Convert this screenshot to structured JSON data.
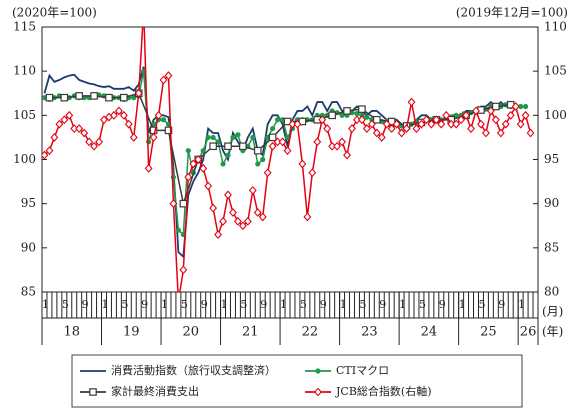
{
  "chart_data": {
    "type": "line",
    "ylabel": "(2020年=100)",
    "y2label": "(2019年12月=100)",
    "xlabel": "(月)",
    "x2label": "(年)",
    "ylim": [
      85,
      115
    ],
    "yticks": [
      85,
      90,
      95,
      100,
      105,
      110,
      115
    ],
    "y2lim": [
      80,
      110
    ],
    "y2ticks": [
      80,
      85,
      90,
      95,
      100,
      105,
      110
    ],
    "x": [
      "2018-01",
      "2018-02",
      "2018-03",
      "2018-04",
      "2018-05",
      "2018-06",
      "2018-07",
      "2018-08",
      "2018-09",
      "2018-10",
      "2018-11",
      "2018-12",
      "2019-01",
      "2019-02",
      "2019-03",
      "2019-04",
      "2019-05",
      "2019-06",
      "2019-07",
      "2019-08",
      "2019-09",
      "2019-10",
      "2019-11",
      "2019-12",
      "2020-01",
      "2020-02",
      "2020-03",
      "2020-04",
      "2020-05",
      "2020-06",
      "2020-07",
      "2020-08",
      "2020-09",
      "2020-10",
      "2020-11",
      "2020-12",
      "2021-01",
      "2021-02",
      "2021-03",
      "2021-04",
      "2021-05",
      "2021-06",
      "2021-07",
      "2021-08",
      "2021-09",
      "2021-10",
      "2021-11",
      "2021-12",
      "2022-01",
      "2022-02",
      "2022-03",
      "2022-04",
      "2022-05",
      "2022-06",
      "2022-07",
      "2022-08",
      "2022-09",
      "2022-10",
      "2022-11",
      "2022-12",
      "2023-01",
      "2023-02",
      "2023-03",
      "2023-04",
      "2023-05",
      "2023-06",
      "2023-07",
      "2023-08",
      "2023-09",
      "2023-10",
      "2023-11",
      "2023-12",
      "2024-01",
      "2024-02",
      "2024-03",
      "2024-04",
      "2024-05",
      "2024-06",
      "2024-07",
      "2024-08",
      "2024-09",
      "2024-10",
      "2024-11",
      "2024-12",
      "2025-01",
      "2025-02",
      "2025-03",
      "2025-04",
      "2025-05",
      "2025-06",
      "2025-07",
      "2025-08",
      "2025-09",
      "2025-10",
      "2025-11",
      "2025-12",
      "2026-01",
      "2026-02",
      "2026-03",
      "2026-04"
    ],
    "xticks": [
      {
        "value": "2018-01",
        "label": "1"
      },
      {
        "value": "2018-05",
        "label": "5"
      },
      {
        "value": "2018-09",
        "label": "9"
      },
      {
        "value": "2019-01",
        "label": "1"
      },
      {
        "value": "2019-05",
        "label": "5"
      },
      {
        "value": "2019-09",
        "label": "9"
      },
      {
        "value": "2020-01",
        "label": "1"
      },
      {
        "value": "2020-05",
        "label": "5"
      },
      {
        "value": "2020-09",
        "label": "9"
      },
      {
        "value": "2021-01",
        "label": "1"
      },
      {
        "value": "2021-05",
        "label": "5"
      },
      {
        "value": "2021-09",
        "label": "9"
      },
      {
        "value": "2022-01",
        "label": "1"
      },
      {
        "value": "2022-05",
        "label": "5"
      },
      {
        "value": "2022-09",
        "label": "9"
      },
      {
        "value": "2023-01",
        "label": "1"
      },
      {
        "value": "2023-05",
        "label": "5"
      },
      {
        "value": "2023-09",
        "label": "9"
      },
      {
        "value": "2024-01",
        "label": "1"
      },
      {
        "value": "2024-05",
        "label": "5"
      },
      {
        "value": "2024-09",
        "label": "9"
      },
      {
        "value": "2025-01",
        "label": "1"
      },
      {
        "value": "2025-05",
        "label": "5"
      },
      {
        "value": "2025-09",
        "label": "9"
      },
      {
        "value": "2026-01",
        "label": "1"
      }
    ],
    "year_ticks": [
      {
        "value": "2018",
        "label": "18"
      },
      {
        "value": "2019",
        "label": "19"
      },
      {
        "value": "2020",
        "label": "20"
      },
      {
        "value": "2021",
        "label": "21"
      },
      {
        "value": "2022",
        "label": "22"
      },
      {
        "value": "2023",
        "label": "23"
      },
      {
        "value": "2024",
        "label": "24"
      },
      {
        "value": "2025",
        "label": "25"
      },
      {
        "value": "2026",
        "label": "26"
      }
    ],
    "series": [
      {
        "name": "消費活動指数（旅行収支調整済）",
        "color": "#1f3a6e",
        "marker": "none",
        "axis": "y",
        "values": [
          107.5,
          109.5,
          108.8,
          109,
          109.3,
          109.5,
          109.6,
          109,
          108.8,
          108.6,
          108.5,
          108.3,
          108.2,
          108.3,
          108,
          108,
          108,
          108.2,
          107.8,
          108.5,
          110.5,
          103,
          104.5,
          105,
          105,
          104.8,
          99,
          89.5,
          89,
          96,
          97.5,
          98.5,
          100,
          103.5,
          103,
          103,
          101,
          100,
          103,
          102,
          101,
          102.5,
          103.5,
          101,
          100.5,
          104,
          105,
          105,
          104,
          101.5,
          104.5,
          105.5,
          105.5,
          106,
          105,
          106.5,
          106.5,
          105.5,
          106.5,
          106.5,
          105.5,
          105.5,
          105.5,
          106,
          105.5,
          105,
          105.5,
          105.5,
          105,
          104.5,
          104.5,
          104.5,
          104,
          103.5,
          104,
          104.5,
          105,
          105,
          104.5,
          104.5,
          104.5,
          104.5,
          105,
          105,
          105,
          105.5,
          105.5,
          105.5,
          106,
          106,
          106.5,
          106,
          106.5,
          106,
          106,
          106,
          106,
          106,
          null,
          null
        ]
      },
      {
        "name": "CTIマクロ",
        "color": "#1f9a4a",
        "marker": "circle",
        "axis": "y",
        "values": [
          107,
          106.8,
          107,
          107.2,
          107,
          107,
          107.2,
          107,
          107,
          107,
          107.2,
          107.3,
          107.2,
          107,
          107,
          107,
          106.8,
          107,
          107,
          107.2,
          110,
          102,
          104,
          104.5,
          104.5,
          104,
          98,
          92,
          91.5,
          101,
          98.5,
          100,
          101,
          102.5,
          102.5,
          102,
          99.5,
          100.5,
          102.5,
          102.8,
          101,
          101.5,
          102.5,
          99.5,
          100,
          102.5,
          103.5,
          104.5,
          104.5,
          102.5,
          103.5,
          104.5,
          104.5,
          104.5,
          104.5,
          105,
          105,
          105,
          105.5,
          105.3,
          105,
          105,
          105.3,
          105.2,
          105,
          104.8,
          104.5,
          104.5,
          104.3,
          104.3,
          104,
          104,
          103.8,
          103.8,
          104,
          104.3,
          104.3,
          104.5,
          104.5,
          104.5,
          104.5,
          104.8,
          104.8,
          105,
          105,
          105.2,
          105.3,
          105.5,
          105.5,
          105.7,
          106,
          106,
          106,
          106.2,
          106,
          106,
          106,
          106,
          null,
          null
        ]
      },
      {
        "name": "家計最終消費支出",
        "color": "#3a3a3a",
        "marker": "square",
        "axis": "y",
        "x": [
          "2018-02",
          "2018-05",
          "2018-08",
          "2018-11",
          "2019-02",
          "2019-05",
          "2019-08",
          "2019-11",
          "2020-02",
          "2020-05",
          "2020-08",
          "2020-11",
          "2021-02",
          "2021-05",
          "2021-08",
          "2021-11",
          "2022-02",
          "2022-05",
          "2022-08",
          "2022-11",
          "2023-02",
          "2023-05",
          "2023-08",
          "2023-11",
          "2024-02",
          "2024-05",
          "2024-08",
          "2024-11",
          "2025-02",
          "2025-05",
          "2025-08",
          "2025-11"
        ],
        "values": [
          107,
          107,
          107.2,
          107.2,
          107,
          107,
          107.5,
          103.3,
          103.3,
          95,
          100,
          101.5,
          101.5,
          101.5,
          101,
          102.5,
          104.3,
          104.3,
          104.5,
          105,
          105.5,
          105.7,
          104.5,
          104.3,
          103.8,
          104.2,
          104.5,
          104.5,
          105,
          105.6,
          106,
          106.2
        ]
      },
      {
        "name": "JCB総合指数(右軸)",
        "color": "#e60012",
        "marker": "diamond",
        "axis": "y2",
        "values": [
          95.5,
          96,
          97.5,
          99,
          99.5,
          100,
          98.5,
          98.5,
          98,
          97,
          96.5,
          97,
          99.5,
          99.8,
          100,
          100.5,
          100,
          99,
          97.5,
          102.5,
          112,
          94,
          97.5,
          100,
          104,
          104.5,
          90,
          79,
          82.5,
          93,
          94.5,
          95,
          94,
          92,
          89.5,
          86.5,
          88,
          91,
          89,
          88,
          87.5,
          88,
          91.5,
          89,
          88.5,
          93.5,
          96.5,
          97,
          97,
          96,
          99,
          99,
          94.5,
          88.5,
          93.5,
          97,
          99.5,
          98.5,
          96.5,
          96.5,
          97,
          95.5,
          98.5,
          99.5,
          99.5,
          98.5,
          99,
          98,
          97.5,
          99,
          98.5,
          99,
          98,
          98.5,
          101.5,
          98.5,
          99,
          99.5,
          99,
          99.5,
          99,
          100,
          99,
          99,
          99.5,
          100,
          98.5,
          100.5,
          99,
          98,
          100.5,
          99.5,
          98,
          99,
          100,
          101,
          99,
          100,
          98,
          null
        ]
      }
    ]
  }
}
